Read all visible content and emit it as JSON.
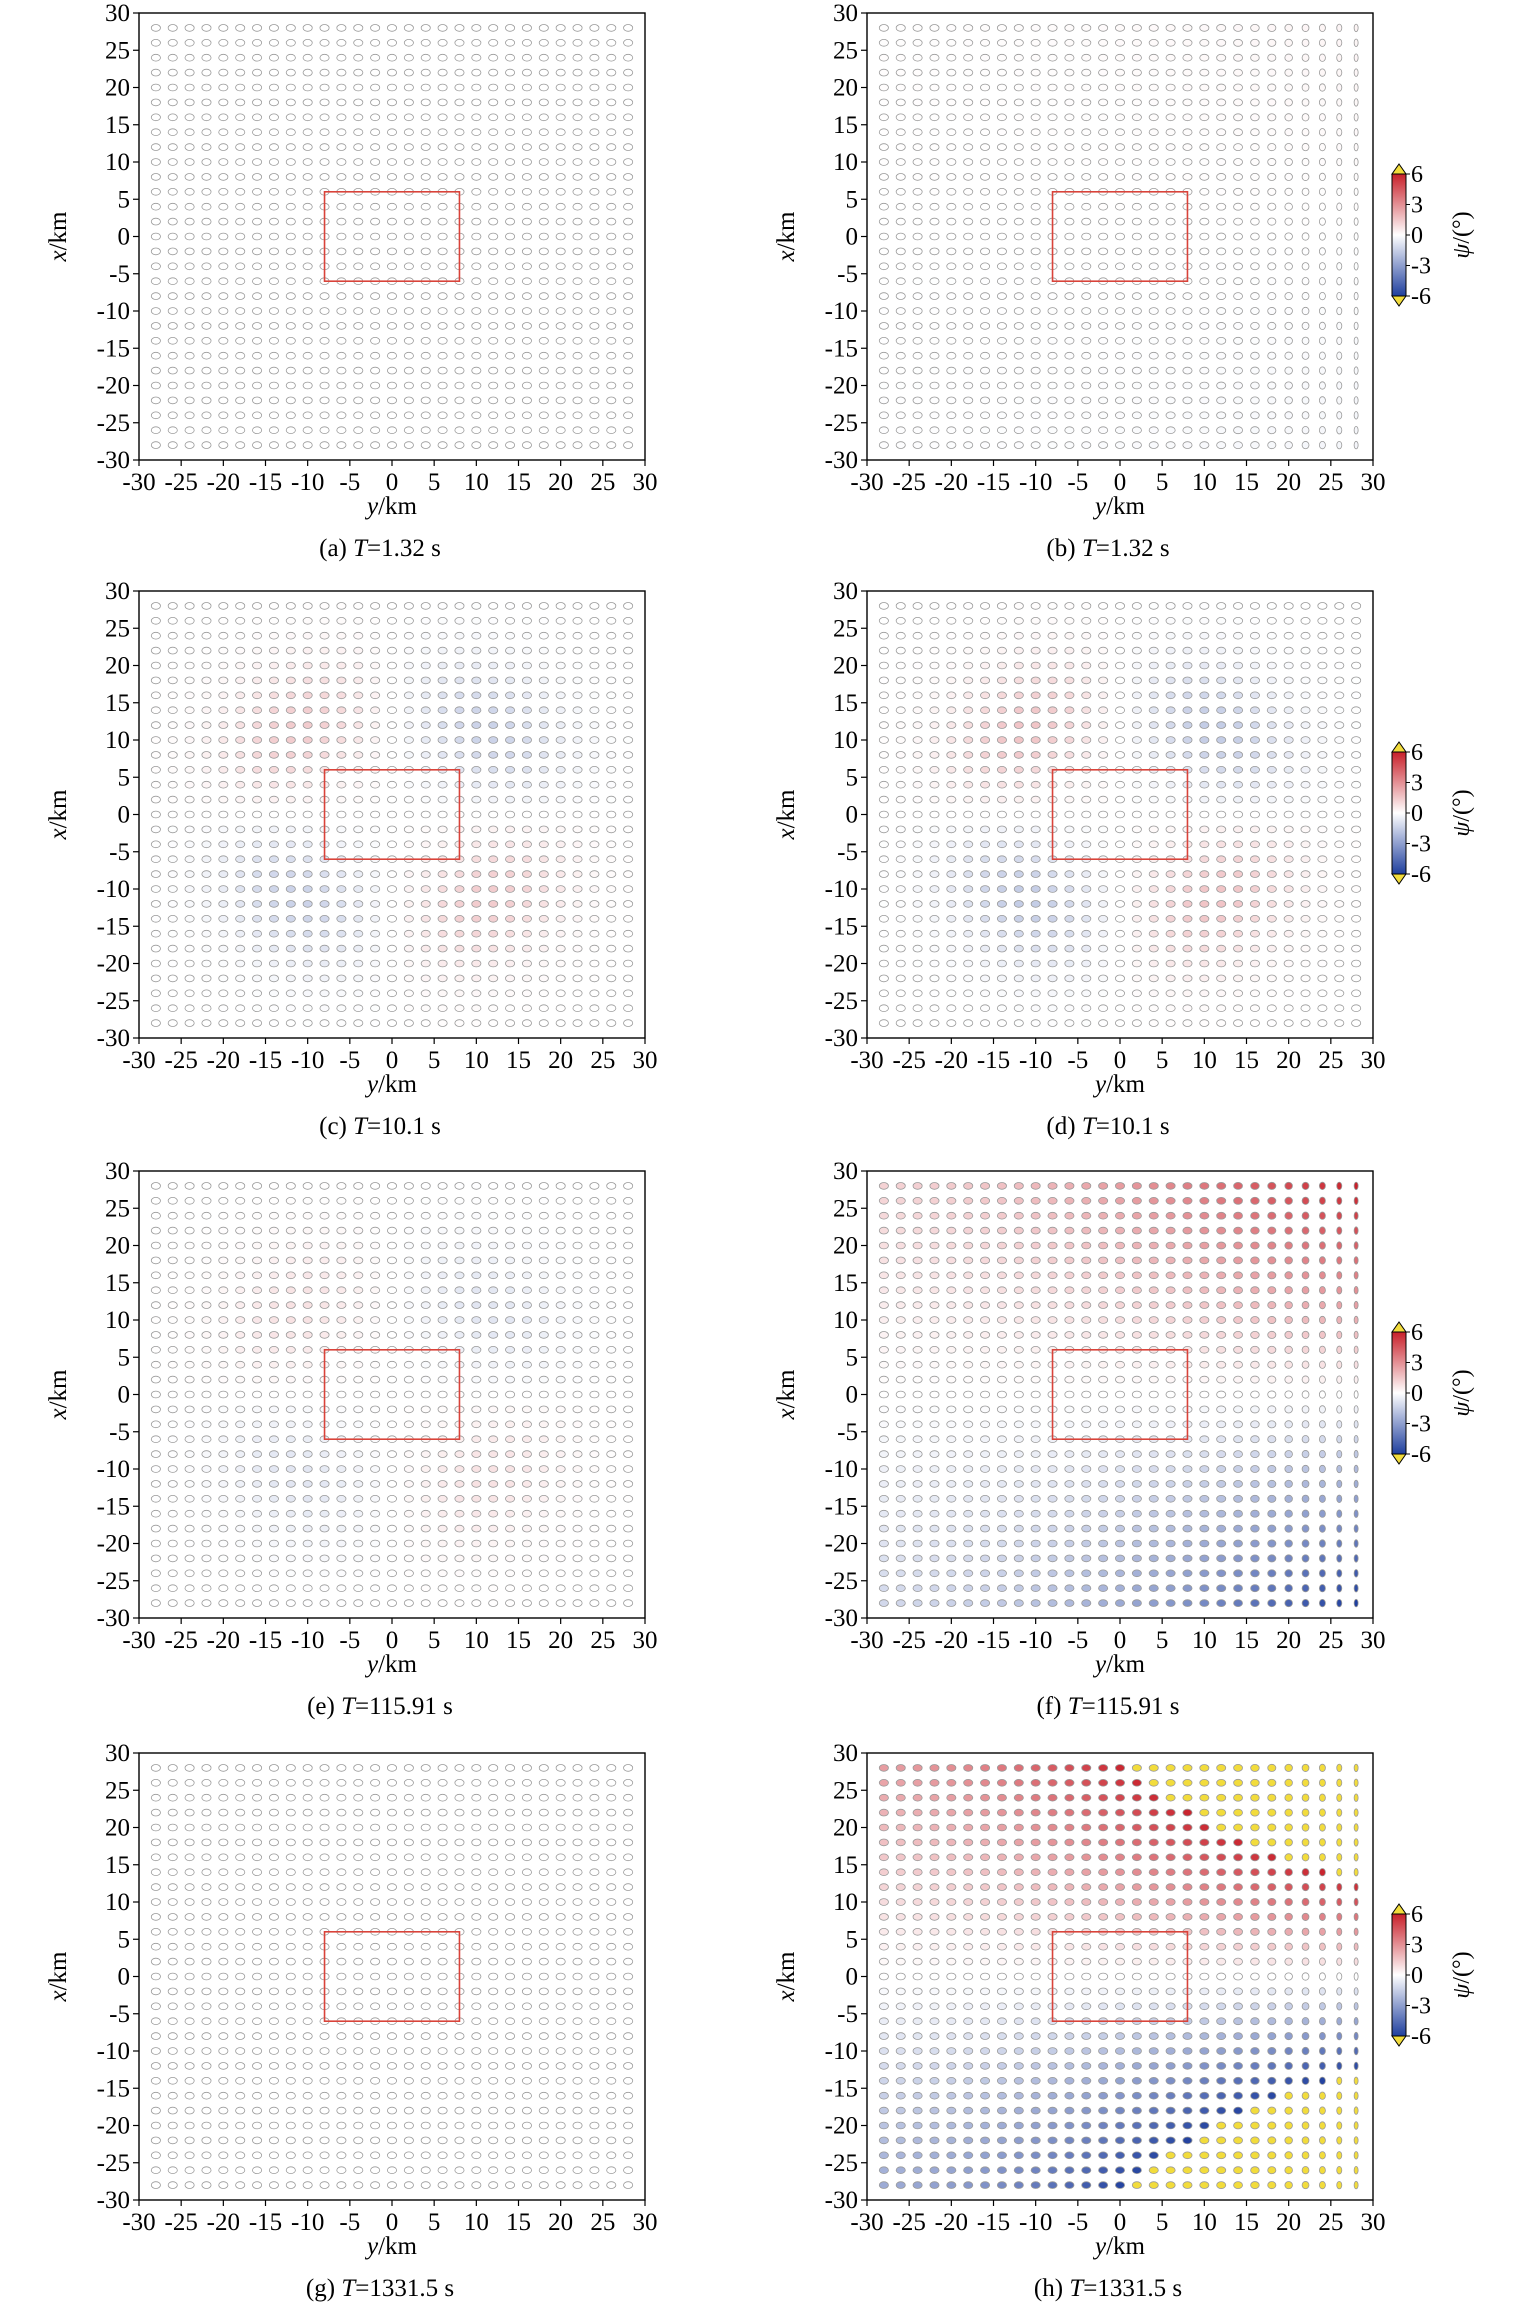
{
  "chart_data": [
    {
      "id": "a",
      "type": "scatter",
      "caption_prefix": "(a) ",
      "caption_var": "T",
      "caption_suffix": "=1.32 s",
      "T": 1.32,
      "mode": "ptheta",
      "amp": 0.0,
      "colorbar": false,
      "xlabel_var": "y",
      "xlabel_unit": "/km",
      "ylabel_var": "x",
      "ylabel_unit": "/km",
      "xlim": [
        -30,
        30
      ],
      "ylim": [
        -30,
        30
      ],
      "xticks": [
        -30,
        -25,
        -20,
        -15,
        -10,
        -5,
        0,
        5,
        10,
        15,
        20,
        25,
        30
      ],
      "yticks": [
        -30,
        -25,
        -20,
        -15,
        -10,
        -5,
        0,
        5,
        10,
        15,
        20,
        25,
        30
      ],
      "grid_y": [
        -28,
        28
      ],
      "grid_x": [
        -28,
        28
      ],
      "grid_step": 2,
      "source_box": {
        "y": [
          -8,
          8
        ],
        "x": [
          -6,
          6
        ]
      }
    },
    {
      "id": "b",
      "type": "scatter",
      "caption_prefix": "(b) ",
      "caption_var": "T",
      "caption_suffix": "=1.32 s",
      "T": 1.32,
      "mode": "x",
      "amp": 0.3,
      "colorbar": true,
      "xlabel_var": "y",
      "xlabel_unit": "/km",
      "ylabel_var": "x",
      "ylabel_unit": "/km",
      "xlim": [
        -30,
        30
      ],
      "ylim": [
        -30,
        30
      ],
      "xticks": [
        -30,
        -25,
        -20,
        -15,
        -10,
        -5,
        0,
        5,
        10,
        15,
        20,
        25,
        30
      ],
      "yticks": [
        -30,
        -25,
        -20,
        -15,
        -10,
        -5,
        0,
        5,
        10,
        15,
        20,
        25,
        30
      ],
      "grid_y": [
        -28,
        28
      ],
      "grid_x": [
        -28,
        28
      ],
      "grid_step": 2,
      "source_box": {
        "y": [
          -8,
          8
        ],
        "x": [
          -6,
          6
        ]
      }
    },
    {
      "id": "c",
      "type": "scatter",
      "caption_prefix": "(c) ",
      "caption_var": "T",
      "caption_suffix": "=10.1 s",
      "T": 10.1,
      "mode": "ptheta",
      "amp": 1.4,
      "colorbar": false,
      "xlabel_var": "y",
      "xlabel_unit": "/km",
      "ylabel_var": "x",
      "ylabel_unit": "/km",
      "xlim": [
        -30,
        30
      ],
      "ylim": [
        -30,
        30
      ],
      "xticks": [
        -30,
        -25,
        -20,
        -15,
        -10,
        -5,
        0,
        5,
        10,
        15,
        20,
        25,
        30
      ],
      "yticks": [
        -30,
        -25,
        -20,
        -15,
        -10,
        -5,
        0,
        5,
        10,
        15,
        20,
        25,
        30
      ],
      "grid_y": [
        -28,
        28
      ],
      "grid_x": [
        -28,
        28
      ],
      "grid_step": 2,
      "source_box": {
        "y": [
          -8,
          8
        ],
        "x": [
          -6,
          6
        ]
      }
    },
    {
      "id": "d",
      "type": "scatter",
      "caption_prefix": "(d) ",
      "caption_var": "T",
      "caption_suffix": "=10.1 s",
      "T": 10.1,
      "mode": "ptheta",
      "amp": 1.6,
      "colorbar": true,
      "xlabel_var": "y",
      "xlabel_unit": "/km",
      "ylabel_var": "x",
      "ylabel_unit": "/km",
      "xlim": [
        -30,
        30
      ],
      "ylim": [
        -30,
        30
      ],
      "xticks": [
        -30,
        -25,
        -20,
        -15,
        -10,
        -5,
        0,
        5,
        10,
        15,
        20,
        25,
        30
      ],
      "yticks": [
        -30,
        -25,
        -20,
        -15,
        -10,
        -5,
        0,
        5,
        10,
        15,
        20,
        25,
        30
      ],
      "grid_y": [
        -28,
        28
      ],
      "grid_x": [
        -28,
        28
      ],
      "grid_step": 2,
      "source_box": {
        "y": [
          -8,
          8
        ],
        "x": [
          -6,
          6
        ]
      }
    },
    {
      "id": "e",
      "type": "scatter",
      "caption_prefix": "(e) ",
      "caption_var": "T",
      "caption_suffix": "=115.91 s",
      "T": 115.91,
      "mode": "ptheta",
      "amp": 0.8,
      "colorbar": false,
      "xlabel_var": "y",
      "xlabel_unit": "/km",
      "ylabel_var": "x",
      "ylabel_unit": "/km",
      "xlim": [
        -30,
        30
      ],
      "ylim": [
        -30,
        30
      ],
      "xticks": [
        -30,
        -25,
        -20,
        -15,
        -10,
        -5,
        0,
        5,
        10,
        15,
        20,
        25,
        30
      ],
      "yticks": [
        -30,
        -25,
        -20,
        -15,
        -10,
        -5,
        0,
        5,
        10,
        15,
        20,
        25,
        30
      ],
      "grid_y": [
        -28,
        28
      ],
      "grid_x": [
        -28,
        28
      ],
      "grid_step": 2,
      "source_box": {
        "y": [
          -8,
          8
        ],
        "x": [
          -6,
          6
        ]
      }
    },
    {
      "id": "f",
      "type": "scatter",
      "caption_prefix": "(f) ",
      "caption_var": "T",
      "caption_suffix": "=115.91 s",
      "T": 115.91,
      "mode": "x",
      "amp": 6.0,
      "colorbar": true,
      "xlabel_var": "y",
      "xlabel_unit": "/km",
      "ylabel_var": "x",
      "ylabel_unit": "/km",
      "xlim": [
        -30,
        30
      ],
      "ylim": [
        -30,
        30
      ],
      "xticks": [
        -30,
        -25,
        -20,
        -15,
        -10,
        -5,
        0,
        5,
        10,
        15,
        20,
        25,
        30
      ],
      "yticks": [
        -30,
        -25,
        -20,
        -15,
        -10,
        -5,
        0,
        5,
        10,
        15,
        20,
        25,
        30
      ],
      "grid_y": [
        -28,
        28
      ],
      "grid_x": [
        -28,
        28
      ],
      "grid_step": 2,
      "source_box": {
        "y": [
          -8,
          8
        ],
        "x": [
          -6,
          6
        ]
      }
    },
    {
      "id": "g",
      "type": "scatter",
      "caption_prefix": "(g) ",
      "caption_var": "T",
      "caption_suffix": "=1331.5 s",
      "T": 1331.5,
      "mode": "ptheta",
      "amp": 0.0,
      "colorbar": false,
      "xlabel_var": "y",
      "xlabel_unit": "/km",
      "ylabel_var": "x",
      "ylabel_unit": "/km",
      "xlim": [
        -30,
        30
      ],
      "ylim": [
        -30,
        30
      ],
      "xticks": [
        -30,
        -25,
        -20,
        -15,
        -10,
        -5,
        0,
        5,
        10,
        15,
        20,
        25,
        30
      ],
      "yticks": [
        -30,
        -25,
        -20,
        -15,
        -10,
        -5,
        0,
        5,
        10,
        15,
        20,
        25,
        30
      ],
      "grid_y": [
        -28,
        28
      ],
      "grid_x": [
        -28,
        28
      ],
      "grid_step": 2,
      "source_box": {
        "y": [
          -8,
          8
        ],
        "x": [
          -6,
          6
        ]
      }
    },
    {
      "id": "h",
      "type": "scatter",
      "caption_prefix": "(h) ",
      "caption_var": "T",
      "caption_suffix": "=1331.5 s",
      "T": 1331.5,
      "mode": "x",
      "amp": 13.0,
      "colorbar": true,
      "xlabel_var": "y",
      "xlabel_unit": "/km",
      "ylabel_var": "x",
      "ylabel_unit": "/km",
      "xlim": [
        -30,
        30
      ],
      "ylim": [
        -30,
        30
      ],
      "xticks": [
        -30,
        -25,
        -20,
        -15,
        -10,
        -5,
        0,
        5,
        10,
        15,
        20,
        25,
        30
      ],
      "yticks": [
        -30,
        -25,
        -20,
        -15,
        -10,
        -5,
        0,
        5,
        10,
        15,
        20,
        25,
        30
      ],
      "grid_y": [
        -28,
        28
      ],
      "grid_x": [
        -28,
        28
      ],
      "grid_step": 2,
      "source_box": {
        "y": [
          -8,
          8
        ],
        "x": [
          -6,
          6
        ]
      }
    }
  ],
  "colorbar": {
    "label_var": "ψ",
    "label_unit": "/(°)",
    "ticks": [
      6,
      3,
      0,
      -3,
      -6
    ],
    "range": [
      -6,
      6
    ],
    "colors": {
      "positive": "#c8202a",
      "negative": "#1f3f9e",
      "neutral": "#ffffff",
      "extend": "#f2dc3c"
    }
  },
  "style": {
    "box_color": "#d9433a",
    "marker_edge": "#9a9a9a"
  }
}
